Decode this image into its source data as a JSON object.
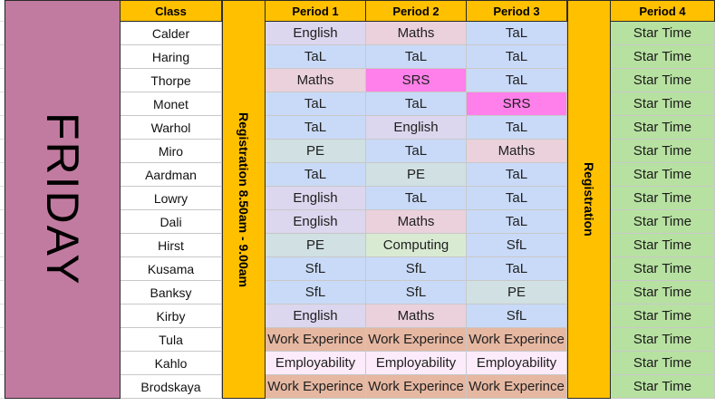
{
  "header": {
    "class": "Class",
    "period1": "Period 1",
    "period2": "Period 2",
    "period3": "Period 3",
    "period4": "Period 4"
  },
  "day": "FRIDAY",
  "registration_morning": "Registration 8.50am - 9.00am",
  "registration_afternoon": "Registration",
  "colors": {
    "header": "#ffc000",
    "day_column": "#c27ba0",
    "star_time": "#b7e1a1",
    "English": "#dcd6ee",
    "Maths": "#ead1dc",
    "TaL": "#c9daf8",
    "SRS": "#ff80ea",
    "PE": "#d0e0e3",
    "Computing": "#d9ead3",
    "SfL": "#c9daf8",
    "Work Experince": "#e6b8a2",
    "Employability": "#fcebfa"
  },
  "rows": [
    {
      "class": "Calder",
      "p1": "English",
      "p2": "Maths",
      "p3": "TaL",
      "p4": "Star Time"
    },
    {
      "class": "Haring",
      "p1": "TaL",
      "p2": "TaL",
      "p3": "TaL",
      "p4": "Star Time"
    },
    {
      "class": "Thorpe",
      "p1": "Maths",
      "p2": "SRS",
      "p3": "TaL",
      "p4": "Star Time"
    },
    {
      "class": "Monet",
      "p1": "TaL",
      "p2": "TaL",
      "p3": "SRS",
      "p4": "Star Time"
    },
    {
      "class": "Warhol",
      "p1": "TaL",
      "p2": "English",
      "p3": "TaL",
      "p4": "Star Time"
    },
    {
      "class": "Miro",
      "p1": "PE",
      "p2": "TaL",
      "p3": "Maths",
      "p4": "Star Time"
    },
    {
      "class": "Aardman",
      "p1": "TaL",
      "p2": "PE",
      "p3": "TaL",
      "p4": "Star Time"
    },
    {
      "class": "Lowry",
      "p1": "English",
      "p2": "TaL",
      "p3": "TaL",
      "p4": "Star Time"
    },
    {
      "class": "Dali",
      "p1": "English",
      "p2": "Maths",
      "p3": "TaL",
      "p4": "Star Time"
    },
    {
      "class": "Hirst",
      "p1": "PE",
      "p2": "Computing",
      "p3": "SfL",
      "p4": "Star Time"
    },
    {
      "class": "Kusama",
      "p1": "SfL",
      "p2": "SfL",
      "p3": "TaL",
      "p4": "Star Time"
    },
    {
      "class": "Banksy",
      "p1": "SfL",
      "p2": "SfL",
      "p3": "PE",
      "p4": "Star Time"
    },
    {
      "class": "Kirby",
      "p1": "English",
      "p2": "Maths",
      "p3": "SfL",
      "p4": "Star Time"
    },
    {
      "class": "Tula",
      "p1": "Work Experince",
      "p2": "Work Experince",
      "p3": "Work Experince",
      "p4": "Star Time"
    },
    {
      "class": "Kahlo",
      "p1": "Employability",
      "p2": "Employability",
      "p3": "Employability",
      "p4": "Star Time"
    },
    {
      "class": "Brodskaya",
      "p1": "Work Experince",
      "p2": "Work Experince",
      "p3": "Work Experince",
      "p4": "Star Time"
    }
  ]
}
